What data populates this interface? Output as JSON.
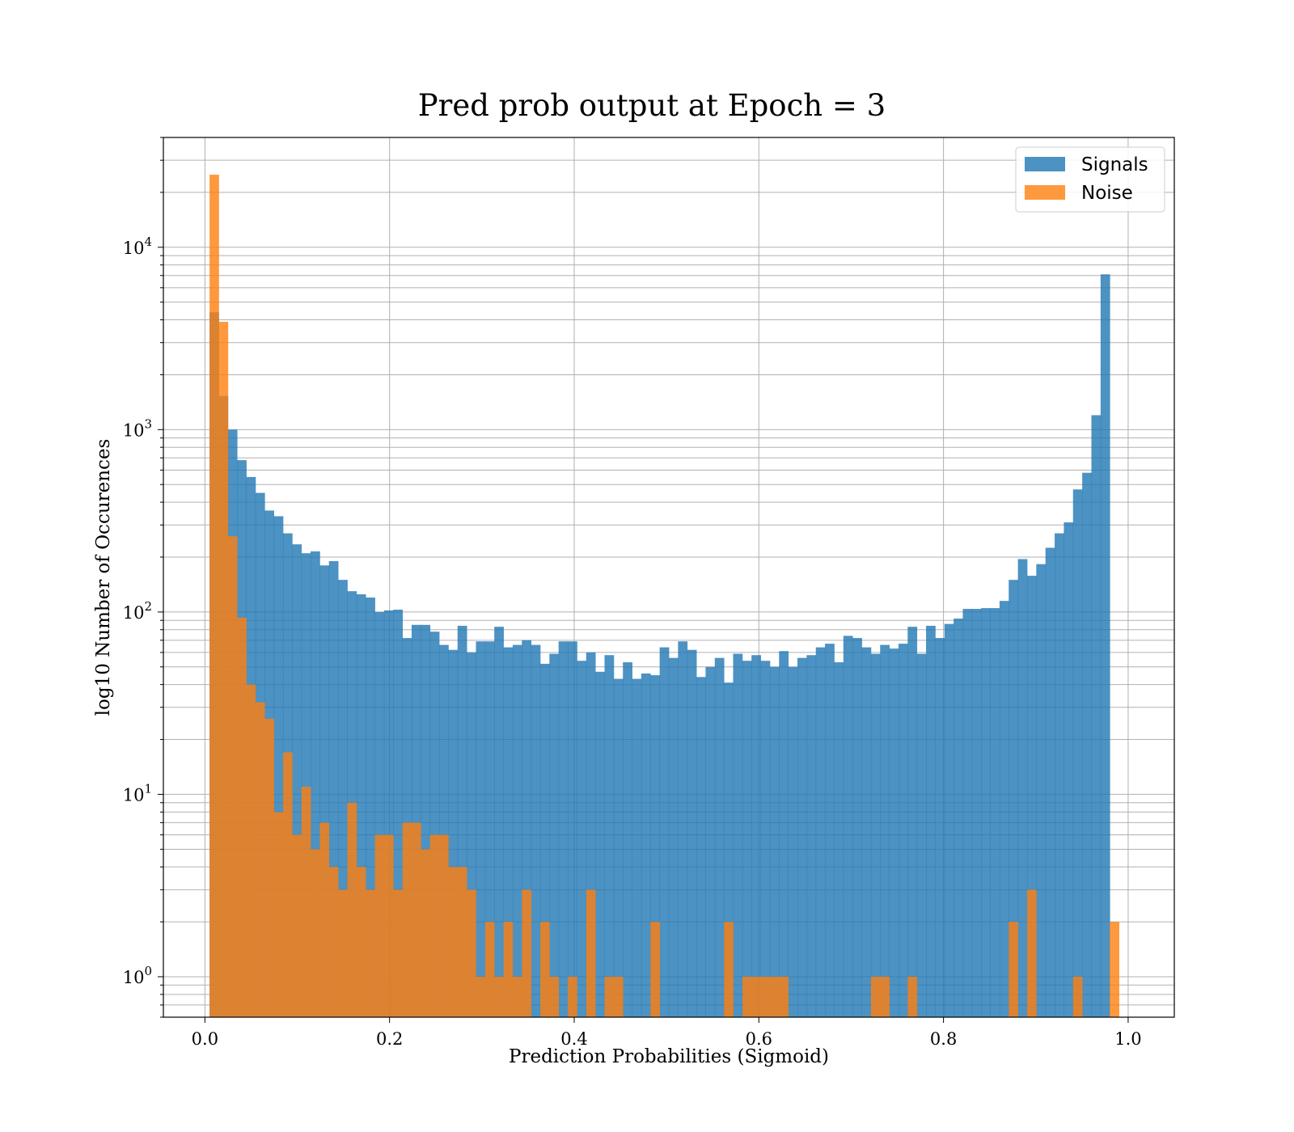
{
  "chart_data": {
    "type": "bar",
    "subtype": "histogram",
    "title": "Pred prob output at Epoch = 3",
    "xlabel": "Prediction Probabilities (Sigmoid)",
    "ylabel": "log10 Number of Occurences",
    "xlim": [
      -0.045,
      1.05
    ],
    "ylim": [
      0.6,
      40000
    ],
    "yscale": "log",
    "grid": true,
    "legend_position": "top-right",
    "x_ticks": [
      "0.0",
      "0.2",
      "0.4",
      "0.6",
      "0.8",
      "1.0"
    ],
    "x_tick_values": [
      0.0,
      0.2,
      0.4,
      0.6,
      0.8,
      1.0
    ],
    "y_ticks": [
      {
        "base": "10",
        "exp": "0",
        "value": 1
      },
      {
        "base": "10",
        "exp": "1",
        "value": 10
      },
      {
        "base": "10",
        "exp": "2",
        "value": 100
      },
      {
        "base": "10",
        "exp": "3",
        "value": 1000
      },
      {
        "base": "10",
        "exp": "4",
        "value": 10000
      }
    ],
    "bin_start": 0.005,
    "bin_width": 0.00995,
    "series": [
      {
        "name": "Signals",
        "color": "#1f77b4",
        "values": [
          4400,
          1530,
          1000,
          680,
          550,
          450,
          360,
          335,
          270,
          235,
          210,
          215,
          180,
          190,
          150,
          130,
          125,
          120,
          100,
          102,
          103,
          72,
          85,
          85,
          78,
          66,
          62,
          84,
          60,
          69,
          69,
          83,
          64,
          66,
          70,
          66,
          52,
          59,
          69,
          69,
          54,
          60,
          47,
          58,
          43,
          53,
          43,
          46,
          45,
          64,
          56,
          69,
          62,
          44,
          50,
          56,
          41,
          59,
          54,
          58,
          54,
          50,
          61,
          50,
          56,
          58,
          64,
          67,
          53,
          74,
          72,
          64,
          59,
          66,
          63,
          67,
          83,
          59,
          84,
          72,
          86,
          92,
          104,
          104,
          105,
          105,
          115,
          150,
          195,
          158,
          183,
          225,
          270,
          310,
          470,
          580,
          1200,
          7100
        ]
      },
      {
        "name": "Noise",
        "color": "#ff7f0e",
        "values": [
          25000,
          3900,
          260,
          93,
          40,
          32,
          26,
          8,
          17,
          6,
          11,
          5,
          7,
          4,
          3,
          9,
          4,
          3,
          6,
          6,
          3,
          7,
          7,
          5,
          6,
          6,
          4,
          4,
          3,
          1,
          2,
          1,
          2,
          1,
          3,
          0.5,
          2,
          1,
          0.5,
          1,
          0.5,
          3,
          0.5,
          1,
          1,
          0.5,
          0.5,
          0.5,
          2,
          0.5,
          0.5,
          0.5,
          0.5,
          0.5,
          0.5,
          0.5,
          2,
          0.5,
          1,
          1,
          1,
          1,
          1,
          0.5,
          0.5,
          0.5,
          0.5,
          0.5,
          0.5,
          0.5,
          0.5,
          0.5,
          1,
          1,
          0.5,
          0.5,
          1,
          0.5,
          0.5,
          0.5,
          0.5,
          0.5,
          0.5,
          0.5,
          0.5,
          0.5,
          0.5,
          2,
          0.5,
          3,
          0.5,
          0.5,
          0.5,
          0.5,
          1,
          0.5,
          0.5,
          0.5,
          2
        ]
      }
    ]
  }
}
